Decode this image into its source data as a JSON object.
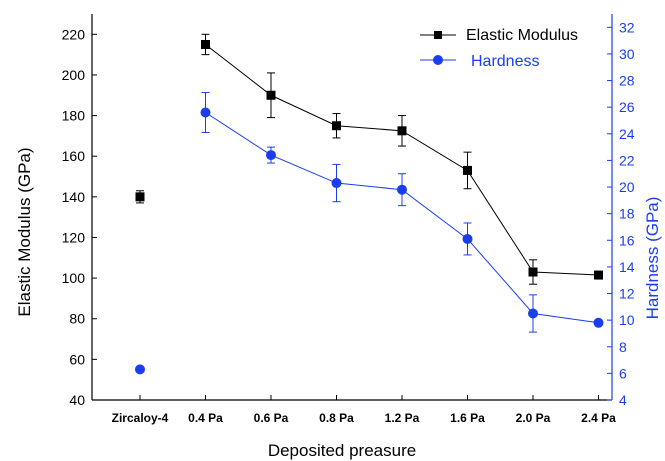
{
  "chart_data": {
    "type": "line",
    "xlabel": "Deposited preasure",
    "ylabel": "Elastic Modulus (GPa)",
    "y2label": "Hardness (GPa)",
    "categories": [
      "Zircaloy-4",
      "0.4 Pa",
      "0.6 Pa",
      "0.8 Pa",
      "1.2 Pa",
      "1.6 Pa",
      "2.0 Pa",
      "2.4 Pa"
    ],
    "ylim": [
      40,
      230
    ],
    "y_ticks": [
      40,
      60,
      80,
      100,
      120,
      140,
      160,
      180,
      200,
      220
    ],
    "y2lim": [
      4,
      33
    ],
    "y2_ticks": [
      4,
      6,
      8,
      10,
      12,
      14,
      16,
      18,
      20,
      22,
      24,
      26,
      28,
      30,
      32
    ],
    "legend_position": "top-right",
    "series": [
      {
        "name": "Elastic Modulus",
        "axis": "left",
        "color": "#000000",
        "marker": "square",
        "values": [
          140,
          215,
          190,
          175,
          172.5,
          153,
          103,
          101.5
        ],
        "error": [
          3,
          5,
          11,
          6,
          7.5,
          9,
          6,
          1.5
        ],
        "connected_from_index": 1
      },
      {
        "name": "Hardness",
        "axis": "right",
        "color": "#1a3df0",
        "marker": "circle",
        "values": [
          6.3,
          25.6,
          22.4,
          20.3,
          19.8,
          16.1,
          10.5,
          9.8
        ],
        "error": [
          0,
          1.5,
          0.6,
          1.4,
          1.2,
          1.2,
          1.4,
          0
        ],
        "connected_from_index": 1
      }
    ]
  }
}
